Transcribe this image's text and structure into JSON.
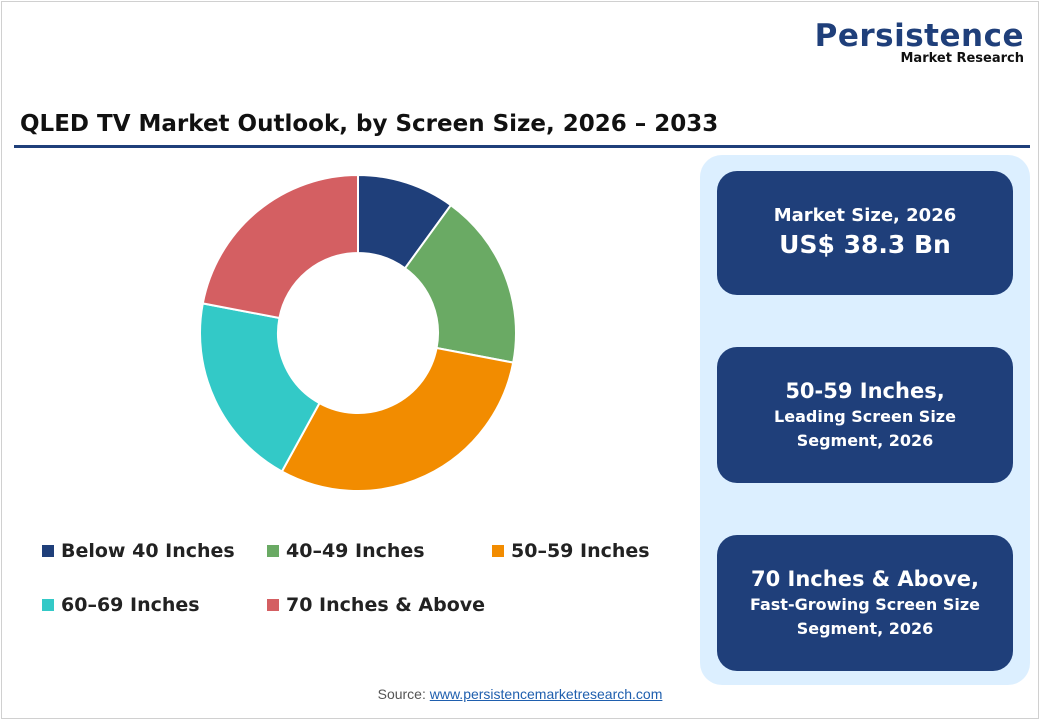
{
  "logo": {
    "line1": "Persistence",
    "line2": "Market Research"
  },
  "title": "QLED TV Market Outlook, by Screen Size, 2026 – 2033",
  "chart_data": {
    "type": "pie",
    "donut": true,
    "categories": [
      "Below 40 Inches",
      "40–49 Inches",
      "50–59 Inches",
      "60–69 Inches",
      "70 Inches & Above"
    ],
    "values": [
      10,
      18,
      30,
      20,
      22
    ],
    "unit": "%",
    "colors": [
      "#1f3f7a",
      "#6aaa64",
      "#f28c00",
      "#33c9c7",
      "#d45f62"
    ],
    "legend_placement": "bottom"
  },
  "panel": {
    "box1": {
      "label": "Market Size, 2026",
      "value": "US$ 38.3 Bn"
    },
    "box2": {
      "value": "50-59 Inches,",
      "label": "Leading Screen Size Segment, 2026"
    },
    "box3": {
      "value": "70 Inches & Above,",
      "label": "Fast-Growing Screen Size Segment, 2026"
    }
  },
  "source": {
    "label": "Source:",
    "link": "www.persistencemarketresearch.com"
  }
}
